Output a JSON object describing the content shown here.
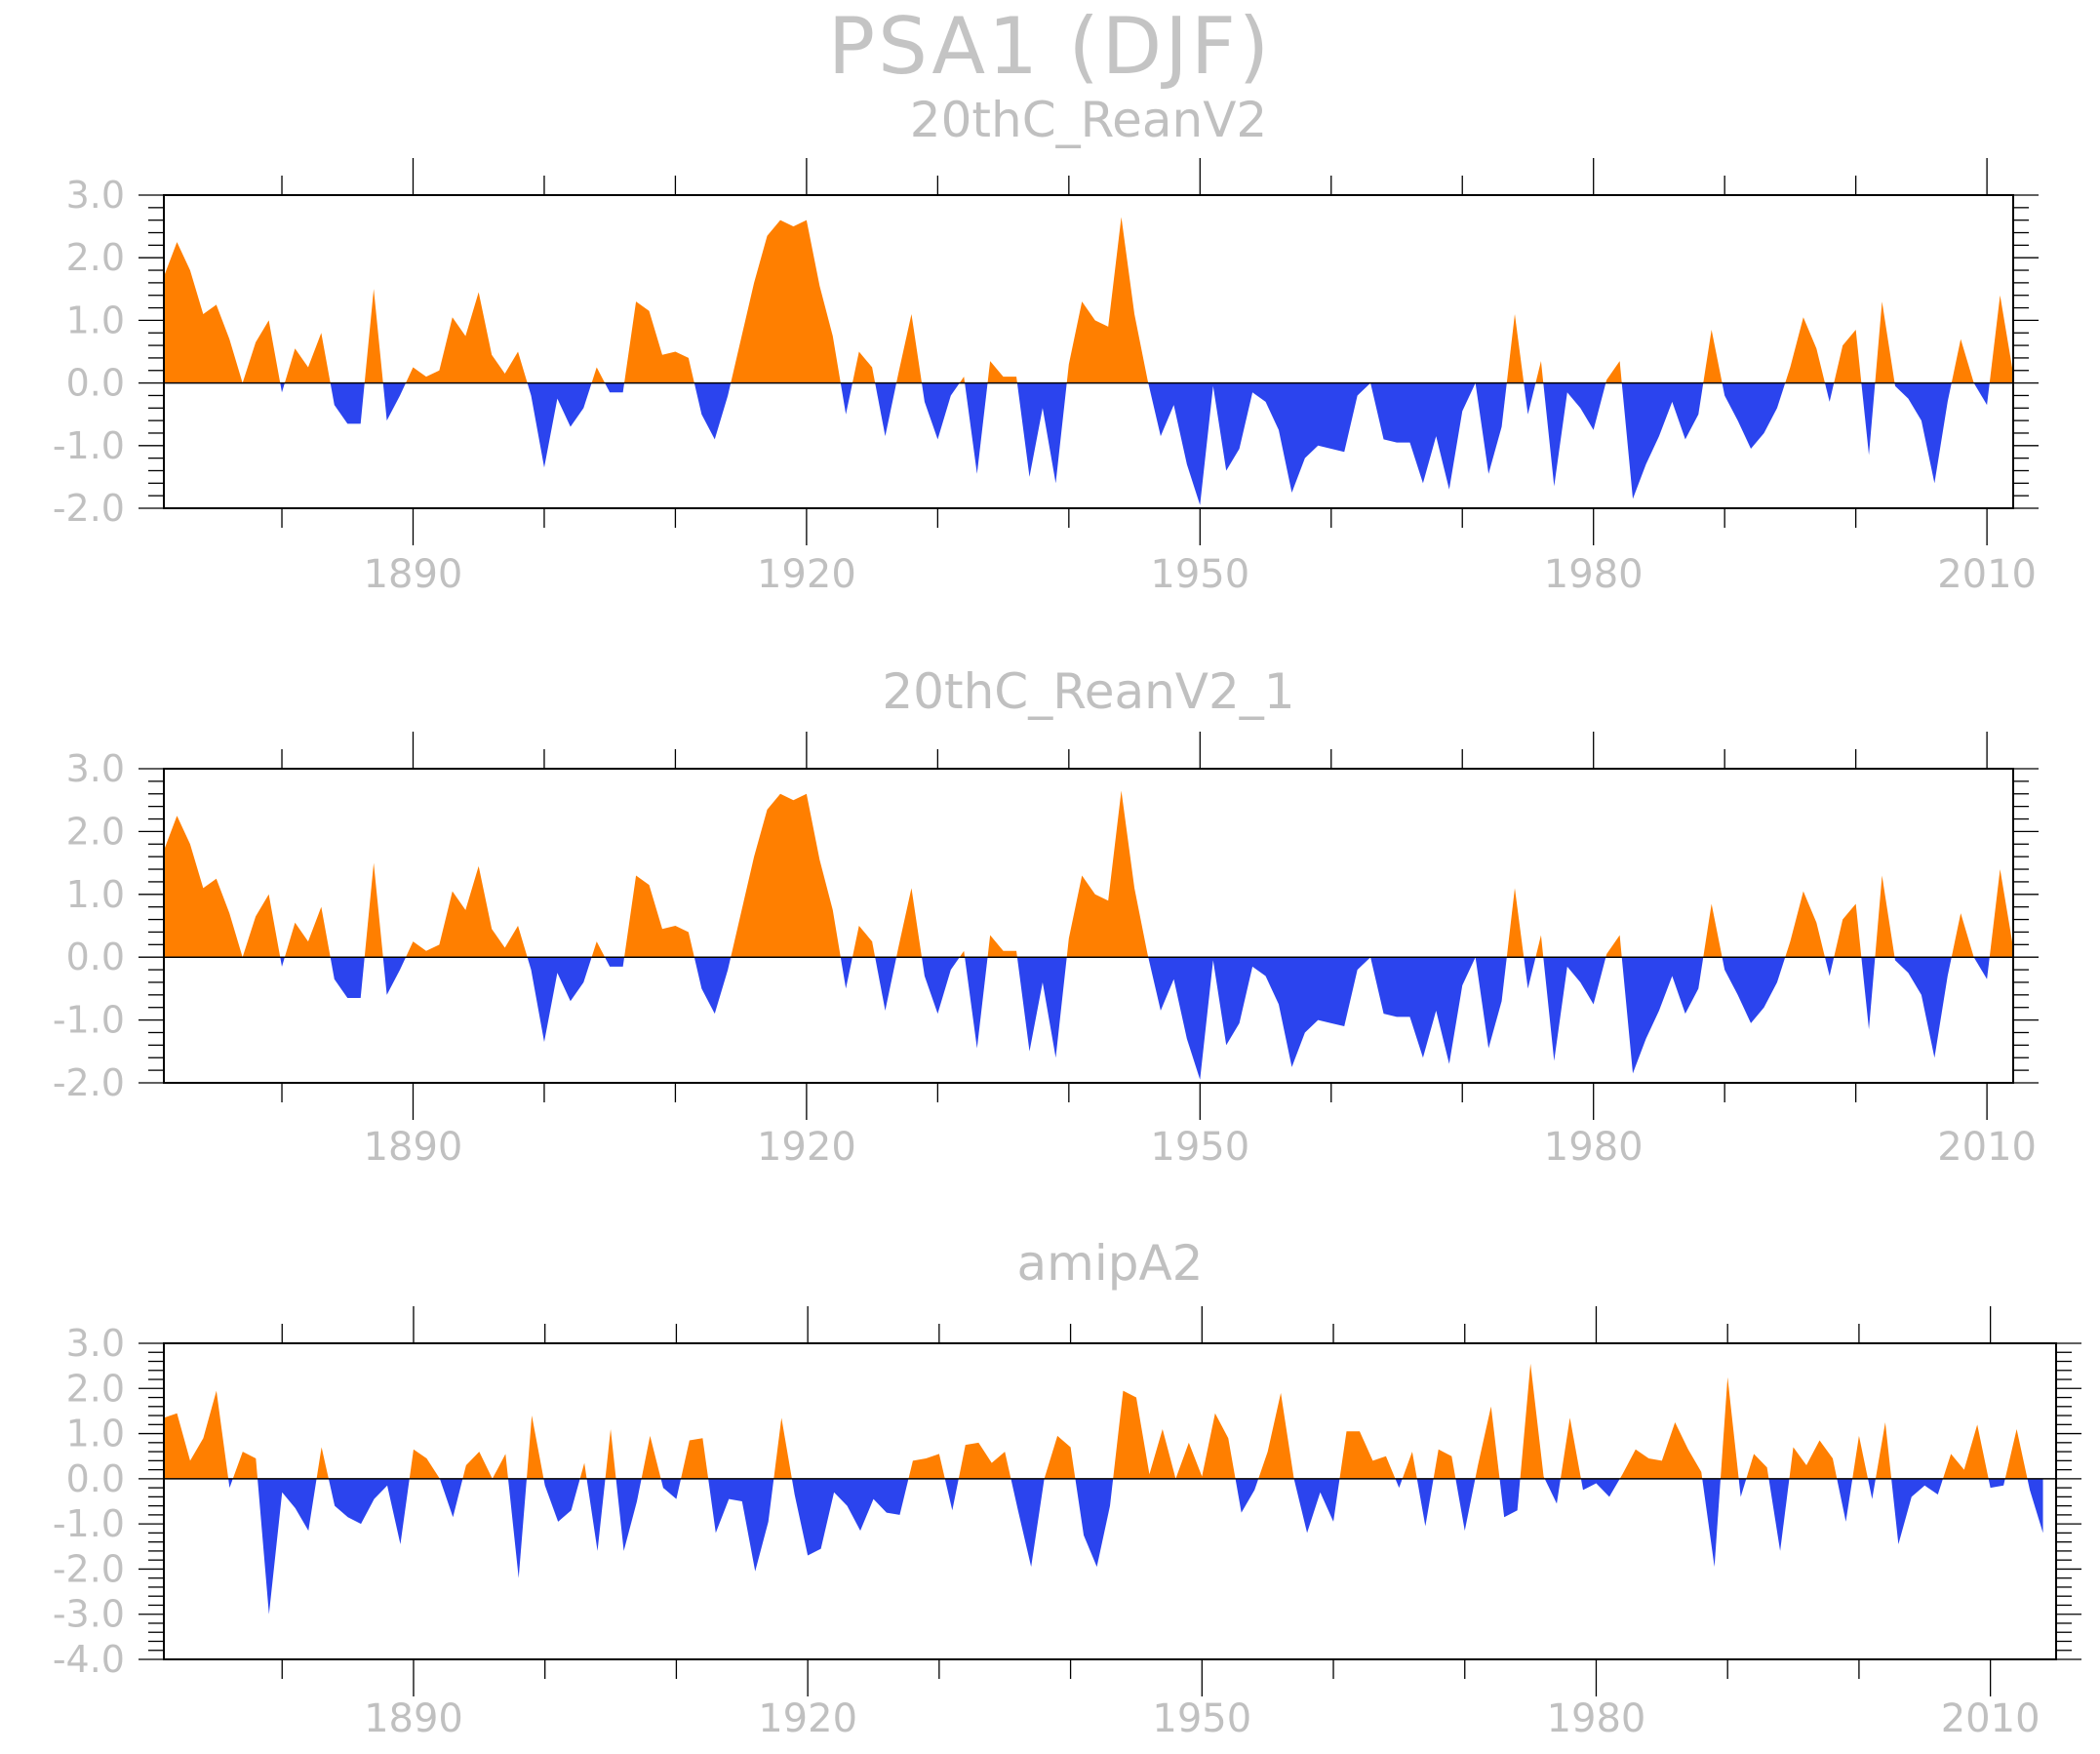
{
  "title": "PSA1 (DJF)",
  "colors": {
    "positive": "#ff7f00",
    "negative": "#2b44ee",
    "axis": "#000000",
    "text": "#c0c0c0"
  },
  "chart_data": [
    {
      "type": "area",
      "title": "20thC_ReanV2",
      "xlabel": "",
      "ylabel": "",
      "xlim": [
        1871,
        2012
      ],
      "ylim": [
        -2.0,
        3.0
      ],
      "yticks": [
        3.0,
        2.0,
        1.0,
        0.0,
        -1.0,
        -2.0
      ],
      "ytick_labels": [
        "3.0",
        "2.0",
        "1.0",
        "0.0",
        "-1.0",
        "-2.0"
      ],
      "xticks": [
        1890,
        1920,
        1950,
        1980,
        2010
      ],
      "xtick_labels": [
        "1890",
        "1920",
        "1950",
        "1980",
        "2010"
      ],
      "x": [
        1871,
        1872,
        1873,
        1874,
        1875,
        1876,
        1877,
        1878,
        1879,
        1880,
        1881,
        1882,
        1883,
        1884,
        1885,
        1886,
        1887,
        1888,
        1889,
        1890,
        1891,
        1892,
        1893,
        1894,
        1895,
        1896,
        1897,
        1898,
        1899,
        1900,
        1901,
        1902,
        1903,
        1904,
        1905,
        1906,
        1907,
        1908,
        1909,
        1910,
        1911,
        1912,
        1913,
        1914,
        1915,
        1916,
        1917,
        1918,
        1919,
        1920,
        1921,
        1922,
        1923,
        1924,
        1925,
        1926,
        1927,
        1928,
        1929,
        1930,
        1931,
        1932,
        1933,
        1934,
        1935,
        1936,
        1937,
        1938,
        1939,
        1940,
        1941,
        1942,
        1943,
        1944,
        1945,
        1946,
        1947,
        1948,
        1949,
        1950,
        1951,
        1952,
        1953,
        1954,
        1955,
        1956,
        1957,
        1958,
        1959,
        1960,
        1961,
        1962,
        1963,
        1964,
        1965,
        1966,
        1967,
        1968,
        1969,
        1970,
        1971,
        1972,
        1973,
        1974,
        1975,
        1976,
        1977,
        1978,
        1979,
        1980,
        1981,
        1982,
        1983,
        1984,
        1985,
        1986,
        1987,
        1988,
        1989,
        1990,
        1991,
        1992,
        1993,
        1994,
        1995,
        1996,
        1997,
        1998,
        1999,
        2000,
        2001,
        2002,
        2003,
        2004,
        2005,
        2006,
        2007,
        2008,
        2009,
        2010,
        2011,
        2012
      ],
      "values": [
        1.7,
        2.25,
        1.8,
        1.1,
        1.25,
        0.7,
        0.0,
        0.65,
        1.0,
        -0.15,
        0.55,
        0.25,
        0.8,
        -0.35,
        -0.65,
        -0.65,
        1.5,
        -0.6,
        -0.2,
        0.25,
        0.1,
        0.2,
        1.05,
        0.75,
        1.45,
        0.45,
        0.15,
        0.5,
        -0.2,
        -1.35,
        -0.25,
        -0.7,
        -0.4,
        0.25,
        -0.15,
        -0.15,
        1.3,
        1.15,
        0.45,
        0.5,
        0.4,
        -0.5,
        -0.9,
        -0.2,
        0.7,
        1.6,
        2.35,
        2.6,
        2.5,
        2.6,
        1.55,
        0.75,
        -0.5,
        0.5,
        0.25,
        -0.85,
        0.15,
        1.1,
        -0.3,
        -0.9,
        -0.2,
        0.1,
        -1.45,
        0.35,
        0.1,
        0.1,
        -1.5,
        -0.4,
        -1.6,
        0.3,
        1.3,
        1.0,
        0.9,
        2.65,
        1.1,
        0.05,
        -0.85,
        -0.35,
        -1.3,
        -1.95,
        -0.05,
        -1.4,
        -1.05,
        -0.15,
        -0.3,
        -0.75,
        -1.75,
        -1.2,
        -1.0,
        -1.05,
        -1.1,
        -0.2,
        0.0,
        -0.9,
        -0.95,
        -0.95,
        -1.6,
        -0.85,
        -1.7,
        -0.45,
        0.0,
        -1.45,
        -0.7,
        1.1,
        -0.5,
        0.35,
        -1.65,
        -0.15,
        -0.4,
        -0.75,
        0.05,
        0.35,
        -1.85,
        -1.3,
        -0.85,
        -0.3,
        -0.9,
        -0.5,
        0.85,
        -0.2,
        -0.6,
        -1.05,
        -0.8,
        -0.4,
        0.25,
        1.05,
        0.55,
        -0.3,
        0.6,
        0.85,
        -1.15,
        1.3,
        -0.05,
        -0.25,
        -0.6,
        -1.6,
        -0.3,
        0.7,
        0.0,
        -0.35,
        1.4,
        0.15
      ]
    },
    {
      "type": "area",
      "title": "20thC_ReanV2_1",
      "xlabel": "",
      "ylabel": "",
      "xlim": [
        1871,
        2012
      ],
      "ylim": [
        -2.0,
        3.0
      ],
      "yticks": [
        3.0,
        2.0,
        1.0,
        0.0,
        -1.0,
        -2.0
      ],
      "ytick_labels": [
        "3.0",
        "2.0",
        "1.0",
        "0.0",
        "-1.0",
        "-2.0"
      ],
      "xticks": [
        1890,
        1920,
        1950,
        1980,
        2010
      ],
      "xtick_labels": [
        "1890",
        "1920",
        "1950",
        "1980",
        "2010"
      ],
      "x": [
        1871,
        1872,
        1873,
        1874,
        1875,
        1876,
        1877,
        1878,
        1879,
        1880,
        1881,
        1882,
        1883,
        1884,
        1885,
        1886,
        1887,
        1888,
        1889,
        1890,
        1891,
        1892,
        1893,
        1894,
        1895,
        1896,
        1897,
        1898,
        1899,
        1900,
        1901,
        1902,
        1903,
        1904,
        1905,
        1906,
        1907,
        1908,
        1909,
        1910,
        1911,
        1912,
        1913,
        1914,
        1915,
        1916,
        1917,
        1918,
        1919,
        1920,
        1921,
        1922,
        1923,
        1924,
        1925,
        1926,
        1927,
        1928,
        1929,
        1930,
        1931,
        1932,
        1933,
        1934,
        1935,
        1936,
        1937,
        1938,
        1939,
        1940,
        1941,
        1942,
        1943,
        1944,
        1945,
        1946,
        1947,
        1948,
        1949,
        1950,
        1951,
        1952,
        1953,
        1954,
        1955,
        1956,
        1957,
        1958,
        1959,
        1960,
        1961,
        1962,
        1963,
        1964,
        1965,
        1966,
        1967,
        1968,
        1969,
        1970,
        1971,
        1972,
        1973,
        1974,
        1975,
        1976,
        1977,
        1978,
        1979,
        1980,
        1981,
        1982,
        1983,
        1984,
        1985,
        1986,
        1987,
        1988,
        1989,
        1990,
        1991,
        1992,
        1993,
        1994,
        1995,
        1996,
        1997,
        1998,
        1999,
        2000,
        2001,
        2002,
        2003,
        2004,
        2005,
        2006,
        2007,
        2008,
        2009,
        2010,
        2011,
        2012
      ],
      "values": [
        1.7,
        2.25,
        1.8,
        1.1,
        1.25,
        0.7,
        0.0,
        0.65,
        1.0,
        -0.15,
        0.55,
        0.25,
        0.8,
        -0.35,
        -0.65,
        -0.65,
        1.5,
        -0.6,
        -0.2,
        0.25,
        0.1,
        0.2,
        1.05,
        0.75,
        1.45,
        0.45,
        0.15,
        0.5,
        -0.2,
        -1.35,
        -0.25,
        -0.7,
        -0.4,
        0.25,
        -0.15,
        -0.15,
        1.3,
        1.15,
        0.45,
        0.5,
        0.4,
        -0.5,
        -0.9,
        -0.2,
        0.7,
        1.6,
        2.35,
        2.6,
        2.5,
        2.6,
        1.55,
        0.75,
        -0.5,
        0.5,
        0.25,
        -0.85,
        0.15,
        1.1,
        -0.3,
        -0.9,
        -0.2,
        0.1,
        -1.45,
        0.35,
        0.1,
        0.1,
        -1.5,
        -0.4,
        -1.6,
        0.3,
        1.3,
        1.0,
        0.9,
        2.65,
        1.1,
        0.05,
        -0.85,
        -0.35,
        -1.3,
        -1.95,
        -0.05,
        -1.4,
        -1.05,
        -0.15,
        -0.3,
        -0.75,
        -1.75,
        -1.2,
        -1.0,
        -1.05,
        -1.1,
        -0.2,
        0.0,
        -0.9,
        -0.95,
        -0.95,
        -1.6,
        -0.85,
        -1.7,
        -0.45,
        0.0,
        -1.45,
        -0.7,
        1.1,
        -0.5,
        0.35,
        -1.65,
        -0.15,
        -0.4,
        -0.75,
        0.05,
        0.35,
        -1.85,
        -1.3,
        -0.85,
        -0.3,
        -0.9,
        -0.5,
        0.85,
        -0.2,
        -0.6,
        -1.05,
        -0.8,
        -0.4,
        0.25,
        1.05,
        0.55,
        -0.3,
        0.6,
        0.85,
        -1.15,
        1.3,
        -0.05,
        -0.25,
        -0.6,
        -1.6,
        -0.3,
        0.7,
        0.0,
        -0.35,
        1.4,
        0.15
      ]
    },
    {
      "type": "area",
      "title": "amipA2",
      "xlabel": "",
      "ylabel": "",
      "xlim": [
        1871,
        2015
      ],
      "ylim": [
        -4.0,
        3.0
      ],
      "yticks": [
        3.0,
        2.0,
        1.0,
        0.0,
        -1.0,
        -2.0,
        -3.0,
        -4.0
      ],
      "ytick_labels": [
        "3.0",
        "2.0",
        "1.0",
        "0.0",
        "-1.0",
        "-2.0",
        "-3.0",
        "-4.0"
      ],
      "xticks": [
        1890,
        1920,
        1950,
        1980,
        2010
      ],
      "xtick_labels": [
        "1890",
        "1920",
        "1950",
        "1980",
        "2010"
      ],
      "x": [
        1871,
        1872,
        1873,
        1874,
        1875,
        1876,
        1877,
        1878,
        1879,
        1880,
        1881,
        1882,
        1883,
        1884,
        1885,
        1886,
        1887,
        1888,
        1889,
        1890,
        1891,
        1892,
        1893,
        1894,
        1895,
        1896,
        1897,
        1898,
        1899,
        1900,
        1901,
        1902,
        1903,
        1904,
        1905,
        1906,
        1907,
        1908,
        1909,
        1910,
        1911,
        1912,
        1913,
        1914,
        1915,
        1916,
        1917,
        1918,
        1919,
        1920,
        1921,
        1922,
        1923,
        1924,
        1925,
        1926,
        1927,
        1928,
        1929,
        1930,
        1931,
        1932,
        1933,
        1934,
        1935,
        1936,
        1937,
        1938,
        1939,
        1940,
        1941,
        1942,
        1943,
        1944,
        1945,
        1946,
        1947,
        1948,
        1949,
        1950,
        1951,
        1952,
        1953,
        1954,
        1955,
        1956,
        1957,
        1958,
        1959,
        1960,
        1961,
        1962,
        1963,
        1964,
        1965,
        1966,
        1967,
        1968,
        1969,
        1970,
        1971,
        1972,
        1973,
        1974,
        1975,
        1976,
        1977,
        1978,
        1979,
        1980,
        1981,
        1982,
        1983,
        1984,
        1985,
        1986,
        1987,
        1988,
        1989,
        1990,
        1991,
        1992,
        1993,
        1994,
        1995,
        1996,
        1997,
        1998,
        1999,
        2000,
        2001,
        2002,
        2003,
        2004,
        2005,
        2006,
        2007,
        2008,
        2009,
        2010,
        2011,
        2012,
        2013,
        2014
      ],
      "values": [
        1.35,
        1.45,
        0.4,
        0.9,
        1.95,
        -0.2,
        0.6,
        0.45,
        -3.0,
        -0.3,
        -0.65,
        -1.15,
        0.7,
        -0.6,
        -0.85,
        -1.0,
        -0.45,
        -0.15,
        -1.45,
        0.65,
        0.45,
        0.0,
        -0.85,
        0.3,
        0.6,
        0.0,
        0.55,
        -2.2,
        1.4,
        -0.15,
        -0.95,
        -0.7,
        0.35,
        -1.6,
        1.1,
        -1.6,
        -0.5,
        0.95,
        -0.2,
        -0.45,
        0.85,
        0.9,
        -1.2,
        -0.45,
        -0.5,
        -2.05,
        -0.95,
        1.35,
        -0.35,
        -1.7,
        -1.55,
        -0.3,
        -0.6,
        -1.15,
        -0.45,
        -0.75,
        -0.8,
        0.4,
        0.45,
        0.55,
        -0.7,
        0.75,
        0.8,
        0.35,
        0.6,
        -0.7,
        -1.95,
        0.0,
        0.95,
        0.7,
        -1.25,
        -1.95,
        -0.6,
        1.95,
        1.8,
        0.1,
        1.1,
        0.0,
        0.8,
        0.05,
        1.45,
        0.9,
        -0.75,
        -0.25,
        0.6,
        1.9,
        0.0,
        -1.2,
        -0.3,
        -0.95,
        1.05,
        1.05,
        0.4,
        0.5,
        -0.2,
        0.6,
        -1.05,
        0.65,
        0.5,
        -1.15,
        0.3,
        1.6,
        -0.85,
        -0.7,
        2.55,
        0.05,
        -0.55,
        1.35,
        -0.25,
        -0.1,
        -0.4,
        0.1,
        0.65,
        0.45,
        0.4,
        1.25,
        0.65,
        0.15,
        -1.95,
        2.25,
        -0.4,
        0.55,
        0.25,
        -1.6,
        0.7,
        0.3,
        0.85,
        0.45,
        -0.95,
        0.95,
        -0.45,
        1.25,
        -1.45,
        -0.4,
        -0.15,
        -0.35,
        0.55,
        0.2,
        1.2,
        -0.2,
        -0.15,
        1.1,
        -0.25,
        -1.2
      ]
    }
  ]
}
